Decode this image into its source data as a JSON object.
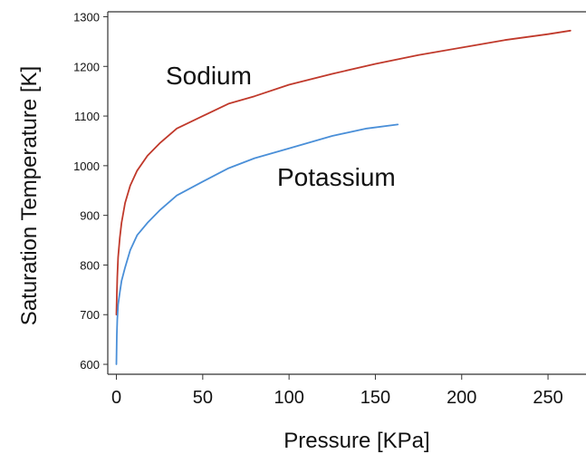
{
  "chart_data": {
    "type": "line",
    "title": "",
    "xlabel": "Pressure [KPa]",
    "ylabel": "Saturation Temperature [K]",
    "xlim": [
      -5,
      272
    ],
    "ylim": [
      580,
      1310
    ],
    "x_ticks": [
      "0",
      "50",
      "100",
      "150",
      "200",
      "250"
    ],
    "y_ticks": [
      "600",
      "700",
      "800",
      "900",
      "1000",
      "1100",
      "1200",
      "1300"
    ],
    "grid": false,
    "legend": "none",
    "series": [
      {
        "name": "Sodium",
        "color": "#c0392b",
        "points": [
          [
            0.0,
            700
          ],
          [
            0.25,
            740
          ],
          [
            0.5,
            775
          ],
          [
            1,
            815
          ],
          [
            2,
            855
          ],
          [
            3,
            885
          ],
          [
            5,
            925
          ],
          [
            8,
            960
          ],
          [
            12,
            990
          ],
          [
            18,
            1020
          ],
          [
            25,
            1045
          ],
          [
            35,
            1075
          ],
          [
            50,
            1100
          ],
          [
            65,
            1125
          ],
          [
            80,
            1140
          ],
          [
            100,
            1163
          ],
          [
            125,
            1185
          ],
          [
            150,
            1205
          ],
          [
            175,
            1223
          ],
          [
            200,
            1238
          ],
          [
            225,
            1253
          ],
          [
            250,
            1265
          ],
          [
            263,
            1272
          ]
        ]
      },
      {
        "name": "Potassium",
        "color": "#4a8fd8",
        "points": [
          [
            0.0,
            600
          ],
          [
            0.25,
            660
          ],
          [
            0.5,
            690
          ],
          [
            1,
            720
          ],
          [
            2,
            745
          ],
          [
            3,
            768
          ],
          [
            5,
            795
          ],
          [
            8,
            830
          ],
          [
            12,
            860
          ],
          [
            18,
            885
          ],
          [
            25,
            910
          ],
          [
            35,
            940
          ],
          [
            50,
            968
          ],
          [
            65,
            995
          ],
          [
            80,
            1015
          ],
          [
            100,
            1035
          ],
          [
            125,
            1060
          ],
          [
            145,
            1075
          ],
          [
            163,
            1083
          ]
        ]
      }
    ]
  }
}
